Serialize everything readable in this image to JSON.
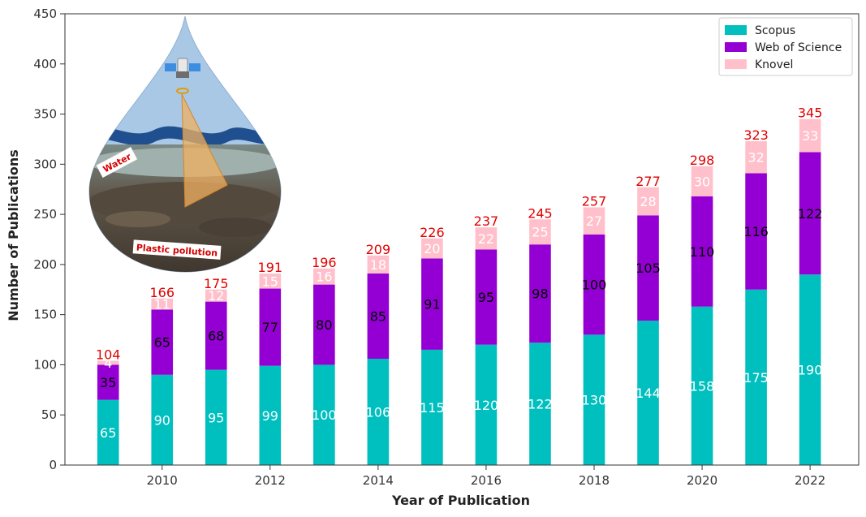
{
  "chart_data": {
    "type": "bar",
    "stacked": true,
    "xlabel": "Year of Publication",
    "ylabel": "Number of Publications",
    "ylim": [
      0,
      450
    ],
    "xlim": [
      2008.2,
      2022.9
    ],
    "yticks": [
      0,
      50,
      100,
      150,
      200,
      250,
      300,
      350,
      400,
      450
    ],
    "xticks": [
      2010,
      2012,
      2014,
      2016,
      2018,
      2020,
      2022
    ],
    "legend_position": "top-right",
    "grid": false,
    "x": [
      2009,
      2010,
      2011,
      2012,
      2013,
      2014,
      2015,
      2016,
      2017,
      2018,
      2019,
      2020,
      2021,
      2022
    ],
    "series": [
      {
        "name": "Scopus",
        "color": "#00bfbf",
        "label_color": "#ffffff",
        "values": [
          65,
          90,
          95,
          99,
          100,
          106,
          115,
          120,
          122,
          130,
          144,
          158,
          175,
          190
        ]
      },
      {
        "name": "Web of Science",
        "color": "#9400d3",
        "label_color": "#000000",
        "values": [
          35,
          65,
          68,
          77,
          80,
          85,
          91,
          95,
          98,
          100,
          105,
          110,
          116,
          122
        ]
      },
      {
        "name": "Knovel",
        "color": "#ffc0cb",
        "label_color": "#ffffff",
        "values": [
          4,
          11,
          12,
          15,
          16,
          18,
          20,
          22,
          25,
          27,
          28,
          30,
          32,
          33
        ]
      }
    ],
    "totals": [
      104,
      166,
      175,
      191,
      196,
      209,
      226,
      237,
      245,
      257,
      277,
      298,
      323,
      345
    ],
    "total_color": "#e00000",
    "inset": {
      "labels": {
        "water": "Water",
        "plastic": "Plastic pollution"
      }
    }
  }
}
